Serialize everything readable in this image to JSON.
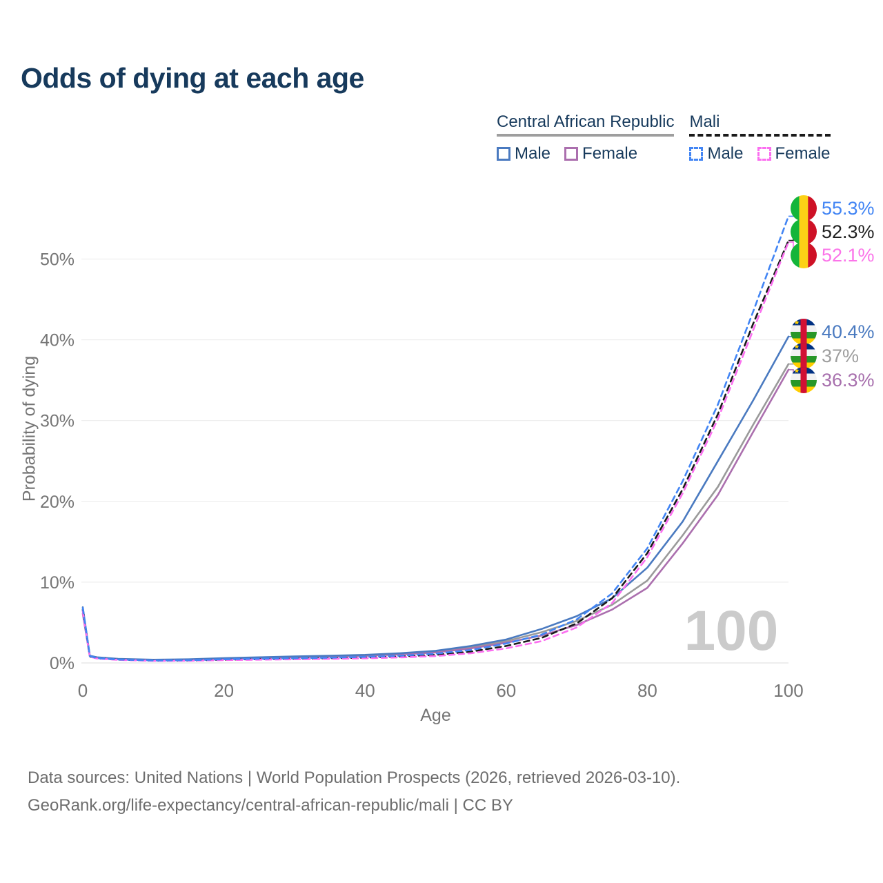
{
  "title": "Odds of dying at each age",
  "legend": {
    "groups": [
      {
        "country": "Central African Republic",
        "line_style": "solid",
        "underline_color": "#9e9e9e",
        "items": [
          {
            "label": "Male",
            "color": "#4a7ac0"
          },
          {
            "label": "Female",
            "color": "#ab6fae"
          }
        ]
      },
      {
        "country": "Mali",
        "line_style": "dashed",
        "underline_color": "#1a1a1a",
        "items": [
          {
            "label": "Male",
            "color": "#4285f4"
          },
          {
            "label": "Female",
            "color": "#fb6ff0"
          }
        ]
      }
    ]
  },
  "axes": {
    "y_label": "Probability of dying",
    "x_label": "Age"
  },
  "watermark": "100",
  "callouts": [
    {
      "icon": "mali-flag-icon",
      "value": "55.3%",
      "color": "#4285f4",
      "series": "mali_male"
    },
    {
      "icon": "mali-flag-icon",
      "value": "52.3%",
      "color": "#1f1f1f",
      "series": "mali_both"
    },
    {
      "icon": "mali-flag-icon",
      "value": "52.1%",
      "color": "#fb74e9",
      "series": "mali_female"
    },
    {
      "icon": "car-flag-icon",
      "value": "40.4%",
      "color": "#4a7ac0",
      "series": "car_male"
    },
    {
      "icon": "car-flag-icon",
      "value": "37%",
      "color": "#9e9e9e",
      "series": "car_both"
    },
    {
      "icon": "car-flag-icon",
      "value": "36.3%",
      "color": "#a76fad",
      "series": "car_female"
    }
  ],
  "footer": {
    "line1": "Data sources: United Nations | World Population Prospects (2026, retrieved 2026-03-10).",
    "line2": "GeoRank.org/life-expectancy/central-african-republic/mali | CC BY"
  },
  "chart_data": {
    "type": "line",
    "title": "Odds of dying at each age",
    "xlabel": "Age",
    "ylabel": "Probability of dying",
    "xlim": [
      0,
      100
    ],
    "ylim": [
      0,
      57
    ],
    "x_ticks": [
      0,
      20,
      40,
      60,
      80,
      100
    ],
    "y_ticks": [
      0,
      10,
      20,
      30,
      40,
      50
    ],
    "y_tick_suffix": "%",
    "grid": true,
    "x": [
      0,
      1,
      2,
      5,
      10,
      15,
      20,
      25,
      30,
      35,
      40,
      45,
      50,
      55,
      60,
      65,
      70,
      75,
      80,
      85,
      90,
      95,
      100
    ],
    "series": [
      {
        "name": "car_both",
        "label": "Central African Republic — Both sexes",
        "color": "#9a9a9a",
        "line_style": "solid",
        "values": [
          6.5,
          0.85,
          0.65,
          0.47,
          0.37,
          0.42,
          0.55,
          0.65,
          0.75,
          0.84,
          0.94,
          1.12,
          1.4,
          1.95,
          2.7,
          3.8,
          5.2,
          7.2,
          10.2,
          15.8,
          21.8,
          29.5,
          37.0
        ]
      },
      {
        "name": "car_female",
        "label": "Central African Republic — Female",
        "color": "#ab6fae",
        "line_style": "solid",
        "values": [
          6.1,
          0.8,
          0.6,
          0.45,
          0.35,
          0.4,
          0.5,
          0.6,
          0.7,
          0.78,
          0.88,
          1.05,
          1.3,
          1.8,
          2.5,
          3.4,
          4.7,
          6.6,
          9.3,
          14.8,
          20.8,
          28.6,
          36.3
        ]
      },
      {
        "name": "car_male",
        "label": "Central African Republic — Male",
        "color": "#4a7ac0",
        "line_style": "solid",
        "values": [
          6.9,
          0.9,
          0.7,
          0.5,
          0.4,
          0.45,
          0.6,
          0.7,
          0.8,
          0.9,
          1.0,
          1.2,
          1.5,
          2.1,
          2.9,
          4.2,
          5.8,
          8.0,
          11.8,
          17.5,
          25.0,
          32.5,
          40.4
        ]
      },
      {
        "name": "mali_both",
        "label": "Mali — Both sexes",
        "color": "#1a1a1a",
        "line_style": "dashed",
        "values": [
          6.6,
          0.8,
          0.58,
          0.4,
          0.28,
          0.3,
          0.4,
          0.46,
          0.52,
          0.58,
          0.66,
          0.8,
          1.0,
          1.4,
          2.1,
          3.1,
          4.9,
          8.0,
          13.6,
          21.5,
          30.8,
          42.0,
          52.3
        ]
      },
      {
        "name": "mali_female",
        "label": "Mali — Female",
        "color": "#fb6ff0",
        "line_style": "dashed",
        "values": [
          6.4,
          0.78,
          0.55,
          0.38,
          0.26,
          0.27,
          0.35,
          0.4,
          0.45,
          0.5,
          0.57,
          0.68,
          0.85,
          1.2,
          1.8,
          2.7,
          4.4,
          7.4,
          13.1,
          21.0,
          30.2,
          41.2,
          52.1
        ]
      },
      {
        "name": "mali_male",
        "label": "Mali — Male",
        "color": "#4285f4",
        "line_style": "dashed",
        "values": [
          6.8,
          0.85,
          0.6,
          0.42,
          0.3,
          0.33,
          0.45,
          0.52,
          0.58,
          0.65,
          0.75,
          0.9,
          1.15,
          1.6,
          2.4,
          3.5,
          5.4,
          8.6,
          14.2,
          22.5,
          32.0,
          43.5,
          55.3
        ]
      }
    ],
    "end_labels": {
      "mali_male": "55.3%",
      "mali_both": "52.3%",
      "mali_female": "52.1%",
      "car_male": "40.4%",
      "car_both": "37%",
      "car_female": "36.3%"
    }
  }
}
